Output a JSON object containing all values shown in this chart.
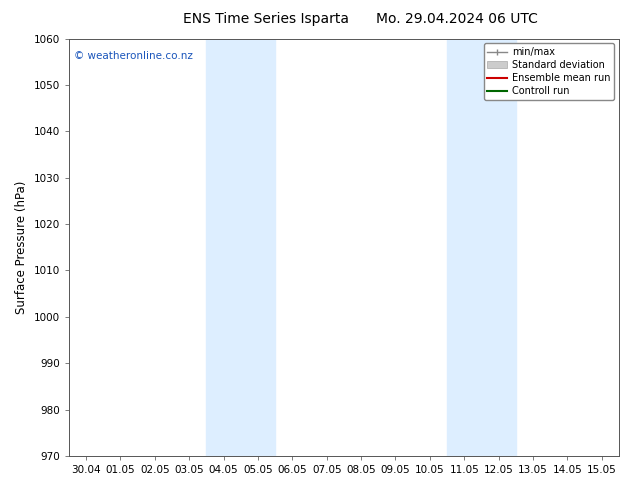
{
  "title_left": "ENS Time Series Isparta",
  "title_right": "Mo. 29.04.2024 06 UTC",
  "ylabel": "Surface Pressure (hPa)",
  "ylim": [
    970,
    1060
  ],
  "yticks": [
    970,
    980,
    990,
    1000,
    1010,
    1020,
    1030,
    1040,
    1050,
    1060
  ],
  "xlim_start": -0.5,
  "xlim_end": 15.5,
  "xtick_labels": [
    "30.04",
    "01.05",
    "02.05",
    "03.05",
    "04.05",
    "05.05",
    "06.05",
    "07.05",
    "08.05",
    "09.05",
    "10.05",
    "11.05",
    "12.05",
    "13.05",
    "14.05",
    "15.05"
  ],
  "shade_bands": [
    {
      "xmin": 3.5,
      "xmax": 4.5,
      "color": "#ddeeff"
    },
    {
      "xmin": 4.5,
      "xmax": 5.5,
      "color": "#ddeeff"
    },
    {
      "xmin": 10.5,
      "xmax": 11.5,
      "color": "#ddeeff"
    },
    {
      "xmin": 11.5,
      "xmax": 12.5,
      "color": "#ddeeff"
    }
  ],
  "watermark": "© weatheronline.co.nz",
  "legend_items": [
    {
      "label": "min/max",
      "color": "#888888"
    },
    {
      "label": "Standard deviation",
      "color": "#cccccc"
    },
    {
      "label": "Ensemble mean run",
      "color": "#cc0000"
    },
    {
      "label": "Controll run",
      "color": "#006600"
    }
  ],
  "bg_color": "#ffffff",
  "plot_bg_color": "#ffffff",
  "title_fontsize": 10,
  "tick_fontsize": 7.5,
  "ylabel_fontsize": 8.5
}
